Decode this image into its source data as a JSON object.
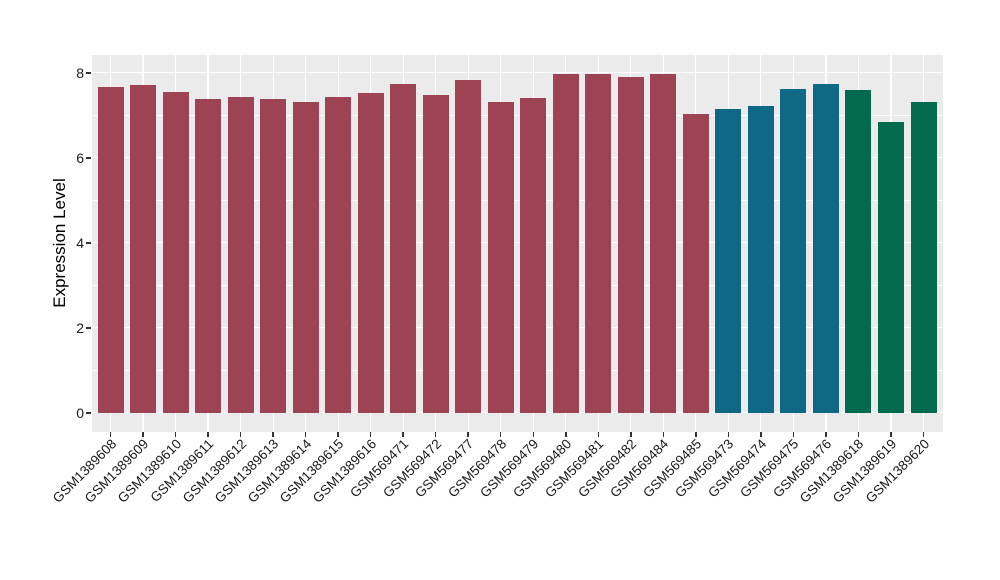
{
  "chart_data": {
    "type": "bar",
    "title": "",
    "xlabel": "",
    "ylabel": "Expression Level",
    "ylim": [
      0,
      8.42
    ],
    "yticks": [
      0,
      2,
      4,
      6,
      8
    ],
    "grid": "horizontal major+minor white gridlines, vertical white gridline at each category",
    "legend_position": "none",
    "panel_background": "#EBEBEB",
    "gridline_color": "#FFFFFF",
    "palette": {
      "group1": "#9D4353",
      "group2": "#0E6886",
      "group3": "#036B4D"
    },
    "bars": [
      {
        "label": "GSM1389608",
        "value": 7.67,
        "group": "group1"
      },
      {
        "label": "GSM1389609",
        "value": 7.71,
        "group": "group1"
      },
      {
        "label": "GSM1389610",
        "value": 7.56,
        "group": "group1"
      },
      {
        "label": "GSM1389611",
        "value": 7.38,
        "group": "group1"
      },
      {
        "label": "GSM1389612",
        "value": 7.43,
        "group": "group1"
      },
      {
        "label": "GSM1389613",
        "value": 7.4,
        "group": "group1"
      },
      {
        "label": "GSM1389614",
        "value": 7.31,
        "group": "group1"
      },
      {
        "label": "GSM1389615",
        "value": 7.44,
        "group": "group1"
      },
      {
        "label": "GSM1389616",
        "value": 7.54,
        "group": "group1"
      },
      {
        "label": "GSM569471",
        "value": 7.73,
        "group": "group1"
      },
      {
        "label": "GSM569472",
        "value": 7.48,
        "group": "group1"
      },
      {
        "label": "GSM569477",
        "value": 7.83,
        "group": "group1"
      },
      {
        "label": "GSM569478",
        "value": 7.32,
        "group": "group1"
      },
      {
        "label": "GSM569479",
        "value": 7.42,
        "group": "group1"
      },
      {
        "label": "GSM569480",
        "value": 7.98,
        "group": "group1"
      },
      {
        "label": "GSM569481",
        "value": 7.98,
        "group": "group1"
      },
      {
        "label": "GSM569482",
        "value": 7.91,
        "group": "group1"
      },
      {
        "label": "GSM569484",
        "value": 7.98,
        "group": "group1"
      },
      {
        "label": "GSM569485",
        "value": 7.03,
        "group": "group1"
      },
      {
        "label": "GSM569473",
        "value": 7.15,
        "group": "group2"
      },
      {
        "label": "GSM569474",
        "value": 7.23,
        "group": "group2"
      },
      {
        "label": "GSM569475",
        "value": 7.62,
        "group": "group2"
      },
      {
        "label": "GSM569476",
        "value": 7.74,
        "group": "group2"
      },
      {
        "label": "GSM1389618",
        "value": 7.6,
        "group": "group3"
      },
      {
        "label": "GSM1389619",
        "value": 6.85,
        "group": "group3"
      },
      {
        "label": "GSM1389620",
        "value": 7.32,
        "group": "group3"
      }
    ]
  }
}
